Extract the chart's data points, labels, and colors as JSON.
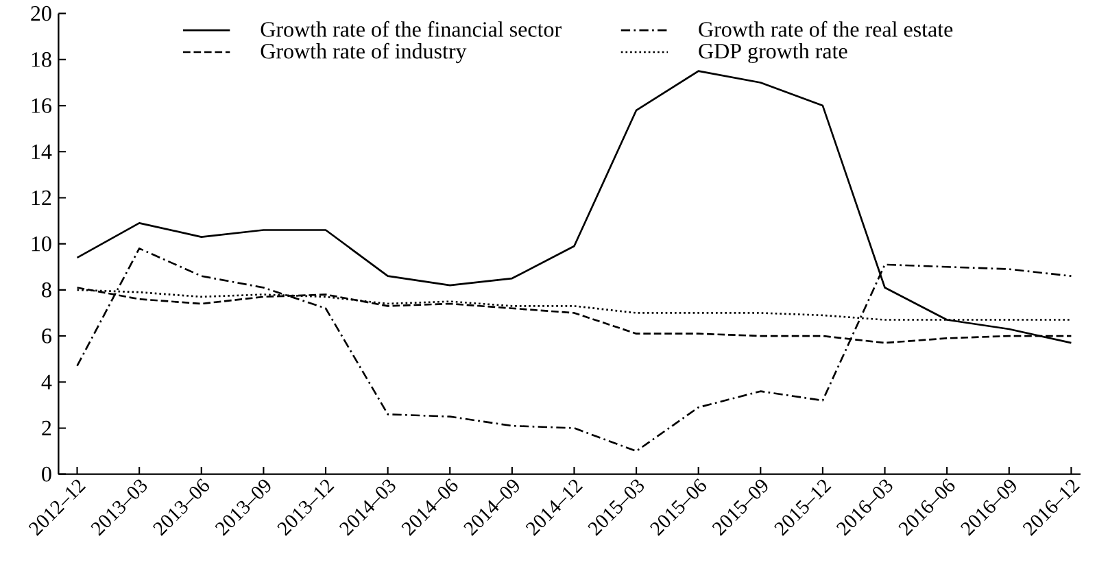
{
  "chart_data": {
    "type": "line",
    "categories": [
      "2012–12",
      "2013–03",
      "2013–06",
      "2013–09",
      "2013–12",
      "2014–03",
      "2014–06",
      "2014–09",
      "2014–12",
      "2015–03",
      "2015–06",
      "2015–09",
      "2015–12",
      "2016–03",
      "2016–06",
      "2016–09",
      "2016–12"
    ],
    "series": [
      {
        "name": "Growth rate of the financial sector",
        "color": "#000000",
        "line_style": "solid",
        "values": [
          9.4,
          10.9,
          10.3,
          10.6,
          10.6,
          8.6,
          8.2,
          8.5,
          9.9,
          15.8,
          17.5,
          17.0,
          16.0,
          8.1,
          6.7,
          6.3,
          5.7
        ]
      },
      {
        "name": "Growth rate of the real estate",
        "color": "#000000",
        "line_style": "dashdot",
        "values": [
          4.7,
          9.8,
          8.6,
          8.1,
          7.2,
          2.6,
          2.5,
          2.1,
          2.0,
          1.0,
          2.9,
          3.6,
          3.2,
          9.1,
          9.0,
          8.9,
          8.6
        ]
      },
      {
        "name": "Growth rate of industry",
        "color": "#000000",
        "line_style": "dashed",
        "values": [
          8.1,
          7.6,
          7.4,
          7.7,
          7.8,
          7.3,
          7.4,
          7.2,
          7.0,
          6.1,
          6.1,
          6.0,
          6.0,
          5.7,
          5.9,
          6.0,
          6.0
        ]
      },
      {
        "name": "GDP growth rate",
        "color": "#000000",
        "line_style": "dotted",
        "values": [
          8.0,
          7.9,
          7.7,
          7.8,
          7.7,
          7.4,
          7.5,
          7.3,
          7.3,
          7.0,
          7.0,
          7.0,
          6.9,
          6.7,
          6.7,
          6.7,
          6.7
        ]
      }
    ],
    "ylim": [
      0,
      20
    ],
    "yticks": [
      0,
      2,
      4,
      6,
      8,
      10,
      12,
      14,
      16,
      18,
      20
    ],
    "grid": false,
    "legend": "top",
    "marker": "none"
  }
}
